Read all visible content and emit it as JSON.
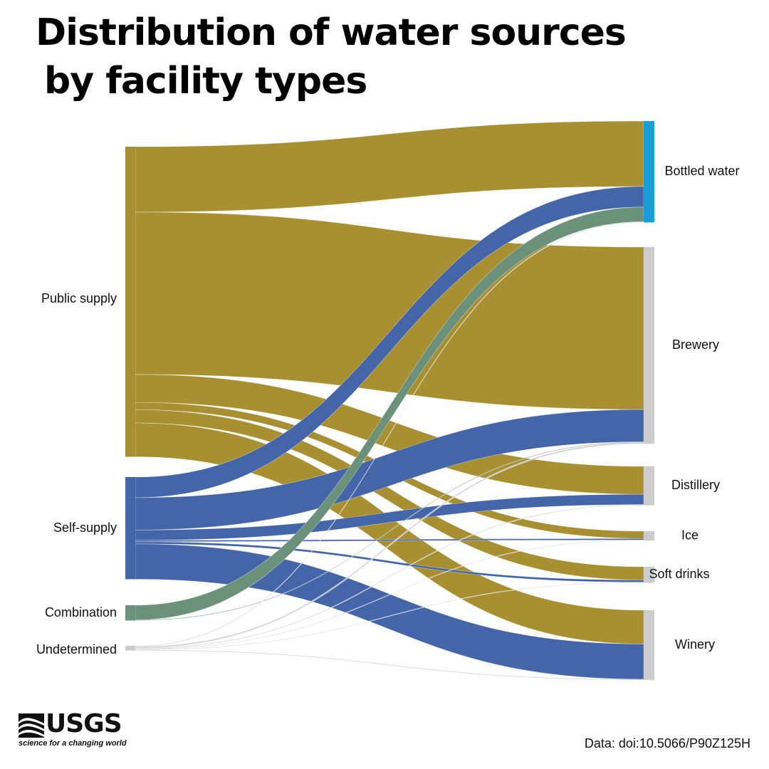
{
  "title_line1": "Distribution of water sources",
  "title_line2": "by facility types",
  "source": "Data: doi:10.5066/P90Z125H",
  "logo": {
    "name": "USGS",
    "tagline": "science for a changing world"
  },
  "colors": {
    "public_supply": "#a89032",
    "self_supply": "#4465a8",
    "combination": "#6c917a",
    "undetermined": "#cccccc",
    "bottled_water_node": "#1b9ed8",
    "target_node": "#cccccc"
  },
  "chart_data": {
    "type": "sankey",
    "title": "Distribution of water sources by facility types",
    "sources": [
      {
        "id": "public",
        "label": "Public supply",
        "color": "#a89032"
      },
      {
        "id": "self",
        "label": "Self-supply",
        "color": "#4465a8"
      },
      {
        "id": "comb",
        "label": "Combination",
        "color": "#6c917a"
      },
      {
        "id": "und",
        "label": "Undetermined",
        "color": "#cccccc"
      }
    ],
    "targets": [
      {
        "id": "bottled",
        "label": "Bottled water",
        "color": "#1b9ed8"
      },
      {
        "id": "brewery",
        "label": "Brewery",
        "color": "#cccccc"
      },
      {
        "id": "distillery",
        "label": "Distillery",
        "color": "#cccccc"
      },
      {
        "id": "ice",
        "label": "Ice",
        "color": "#cccccc"
      },
      {
        "id": "soft",
        "label": "Soft drinks",
        "color": "#cccccc"
      },
      {
        "id": "winery",
        "label": "Winery",
        "color": "#cccccc"
      }
    ],
    "links": [
      {
        "source": "public",
        "target": "bottled",
        "value": 89
      },
      {
        "source": "public",
        "target": "brewery",
        "value": 221
      },
      {
        "source": "public",
        "target": "distillery",
        "value": 38
      },
      {
        "source": "public",
        "target": "ice",
        "value": 10
      },
      {
        "source": "public",
        "target": "soft",
        "value": 18
      },
      {
        "source": "public",
        "target": "winery",
        "value": 46
      },
      {
        "source": "self",
        "target": "bottled",
        "value": 28
      },
      {
        "source": "self",
        "target": "brewery",
        "value": 44
      },
      {
        "source": "self",
        "target": "distillery",
        "value": 14
      },
      {
        "source": "self",
        "target": "ice",
        "value": 2
      },
      {
        "source": "self",
        "target": "soft",
        "value": 3
      },
      {
        "source": "self",
        "target": "winery",
        "value": 48
      },
      {
        "source": "comb",
        "target": "bottled",
        "value": 20
      },
      {
        "source": "comb",
        "target": "brewery",
        "value": 0.5
      },
      {
        "source": "und",
        "target": "bottled",
        "value": 1
      },
      {
        "source": "und",
        "target": "brewery",
        "value": 2
      },
      {
        "source": "und",
        "target": "distillery",
        "value": 1
      },
      {
        "source": "und",
        "target": "ice",
        "value": 0.5
      },
      {
        "source": "und",
        "target": "soft",
        "value": 0.5
      },
      {
        "source": "und",
        "target": "winery",
        "value": 1
      }
    ]
  }
}
